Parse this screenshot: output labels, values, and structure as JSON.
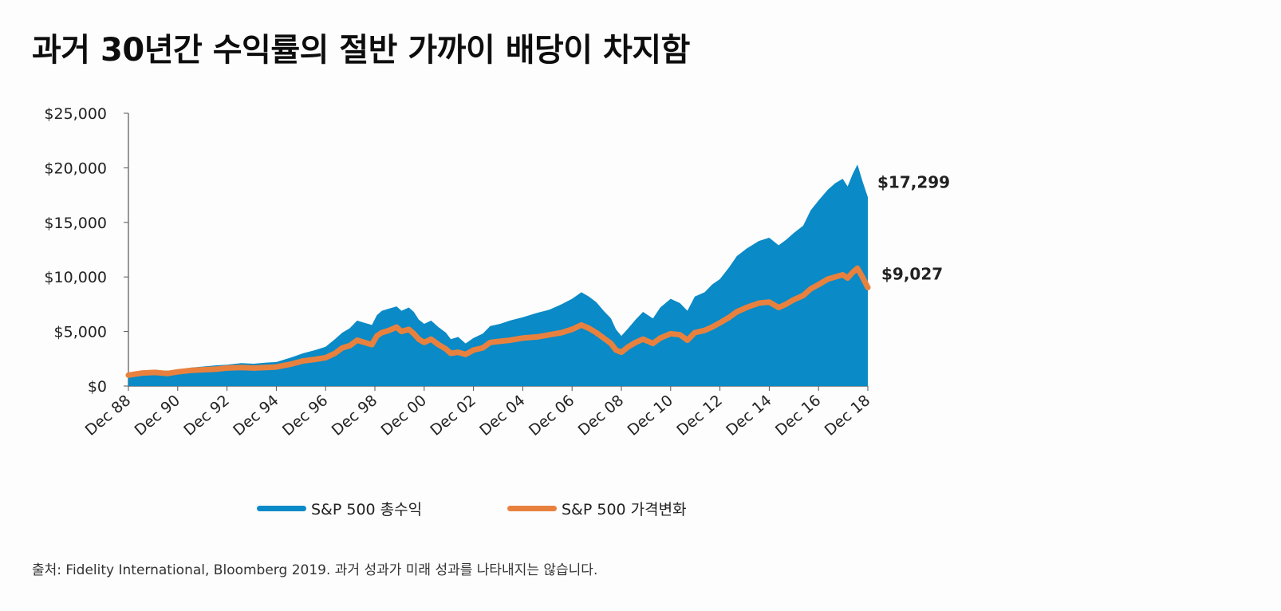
{
  "title": "과거 30년간 수익률의 절반 가까이 배당이 차지함",
  "source": "출처:  Fidelity International, Bloomberg 2019. 과거 성과가 미래 성과를 나타내지는 않습니다.",
  "colors": {
    "total_return": "#0a8ac6",
    "price_change": "#e9813e"
  },
  "legend": {
    "total_return": "S&P 500 총수익",
    "price_change": "S&P 500 가격변화"
  },
  "end_labels": {
    "total_return": "$17,299",
    "price_change": "$9,027"
  },
  "chart_data": {
    "type": "area",
    "title": "과거 30년간 수익률의 절반 가까이 배당이 차지함",
    "xlabel": "",
    "ylabel": "",
    "ylim": [
      0,
      25000
    ],
    "xlim": [
      1988.92,
      2018.92
    ],
    "yticks": [
      "$25,000",
      "$20,000",
      "$15,000",
      "$10,000",
      "$5,000",
      "$0"
    ],
    "ytick_values": [
      25000,
      20000,
      15000,
      10000,
      5000,
      0
    ],
    "xticks": [
      "Dec 88",
      "Dec 90",
      "Dec 92",
      "Dec 94",
      "Dec 96",
      "Dec 98",
      "Dec 00",
      "Dec 02",
      "Dec 04",
      "Dec 06",
      "Dec 08",
      "Dec 10",
      "Dec 12",
      "Dec 14",
      "Dec 16",
      "Dec 18"
    ],
    "xtick_values": [
      1988.92,
      1990.92,
      1992.92,
      1994.92,
      1996.92,
      1998.92,
      2000.92,
      2002.92,
      2004.92,
      2006.92,
      2008.92,
      2010.92,
      2012.92,
      2014.92,
      2016.92,
      2018.92
    ],
    "grid": false,
    "legend_position": "bottom",
    "series": [
      {
        "name": "S&P 500 총수익",
        "type": "area",
        "x": [
          1988.92,
          1989.5,
          1990.0,
          1990.5,
          1990.92,
          1991.5,
          1992.0,
          1992.5,
          1992.92,
          1993.5,
          1994.0,
          1994.5,
          1994.92,
          1995.5,
          1996.0,
          1996.5,
          1996.92,
          1997.3,
          1997.6,
          1997.9,
          1998.2,
          1998.5,
          1998.8,
          1999.0,
          1999.2,
          1999.5,
          1999.8,
          2000.0,
          2000.3,
          2000.5,
          2000.7,
          2000.92,
          2001.2,
          2001.5,
          2001.8,
          2002.0,
          2002.3,
          2002.6,
          2002.92,
          2003.3,
          2003.6,
          2004.0,
          2004.4,
          2004.92,
          2005.5,
          2006.0,
          2006.5,
          2006.92,
          2007.3,
          2007.6,
          2007.9,
          2008.2,
          2008.5,
          2008.7,
          2008.92,
          2009.2,
          2009.5,
          2009.8,
          2010.2,
          2010.5,
          2010.92,
          2011.3,
          2011.6,
          2011.9,
          2012.3,
          2012.6,
          2012.92,
          2013.3,
          2013.6,
          2014.0,
          2014.5,
          2014.92,
          2015.3,
          2015.6,
          2015.9,
          2016.3,
          2016.6,
          2016.92,
          2017.3,
          2017.6,
          2017.9,
          2018.1,
          2018.3,
          2018.5,
          2018.7,
          2018.92
        ],
        "y": [
          1000,
          1350,
          1450,
          1400,
          1500,
          1700,
          1800,
          1900,
          1950,
          2100,
          2050,
          2150,
          2200,
          2600,
          3000,
          3300,
          3600,
          4300,
          4900,
          5300,
          6000,
          5800,
          5600,
          6500,
          6900,
          7100,
          7300,
          6900,
          7200,
          6800,
          6100,
          5700,
          6000,
          5400,
          4900,
          4300,
          4500,
          3900,
          4400,
          4800,
          5500,
          5700,
          6000,
          6300,
          6700,
          7000,
          7500,
          8000,
          8600,
          8200,
          7700,
          6900,
          6200,
          5200,
          4600,
          5300,
          6100,
          6800,
          6200,
          7200,
          8000,
          7600,
          6900,
          8200,
          8600,
          9300,
          9800,
          10900,
          11900,
          12600,
          13300,
          13600,
          12900,
          13400,
          14000,
          14700,
          16100,
          17000,
          18000,
          18600,
          19000,
          18300,
          19400,
          20300,
          18800,
          17299
        ]
      },
      {
        "name": "S&P 500 가격변화",
        "type": "line",
        "x": [
          1988.92,
          1989.5,
          1990.0,
          1990.5,
          1990.92,
          1991.5,
          1992.0,
          1992.5,
          1992.92,
          1993.5,
          1994.0,
          1994.5,
          1994.92,
          1995.5,
          1996.0,
          1996.5,
          1996.92,
          1997.3,
          1997.6,
          1997.9,
          1998.2,
          1998.5,
          1998.8,
          1999.0,
          1999.2,
          1999.5,
          1999.8,
          2000.0,
          2000.3,
          2000.5,
          2000.7,
          2000.92,
          2001.2,
          2001.5,
          2001.8,
          2002.0,
          2002.3,
          2002.6,
          2002.92,
          2003.3,
          2003.6,
          2004.0,
          2004.4,
          2004.92,
          2005.5,
          2006.0,
          2006.5,
          2006.92,
          2007.3,
          2007.6,
          2007.9,
          2008.2,
          2008.5,
          2008.7,
          2008.92,
          2009.2,
          2009.5,
          2009.8,
          2010.2,
          2010.5,
          2010.92,
          2011.3,
          2011.6,
          2011.9,
          2012.3,
          2012.6,
          2012.92,
          2013.3,
          2013.6,
          2014.0,
          2014.5,
          2014.92,
          2015.3,
          2015.6,
          2015.9,
          2016.3,
          2016.6,
          2016.92,
          2017.3,
          2017.6,
          2017.9,
          2018.1,
          2018.3,
          2018.5,
          2018.7,
          2018.92
        ],
        "y": [
          1000,
          1200,
          1250,
          1150,
          1300,
          1450,
          1500,
          1550,
          1650,
          1700,
          1650,
          1700,
          1750,
          2000,
          2300,
          2450,
          2600,
          3000,
          3500,
          3700,
          4200,
          4000,
          3800,
          4600,
          4900,
          5100,
          5400,
          5000,
          5200,
          4800,
          4300,
          4000,
          4300,
          3800,
          3400,
          3000,
          3100,
          2900,
          3300,
          3500,
          4000,
          4100,
          4200,
          4400,
          4500,
          4700,
          4900,
          5200,
          5600,
          5300,
          4900,
          4400,
          3900,
          3300,
          3100,
          3600,
          4000,
          4300,
          3900,
          4400,
          4800,
          4700,
          4200,
          4900,
          5100,
          5400,
          5800,
          6300,
          6800,
          7200,
          7600,
          7700,
          7200,
          7500,
          7900,
          8300,
          8900,
          9300,
          9800,
          10000,
          10200,
          9900,
          10400,
          10800,
          10000,
          9027
        ]
      }
    ]
  }
}
